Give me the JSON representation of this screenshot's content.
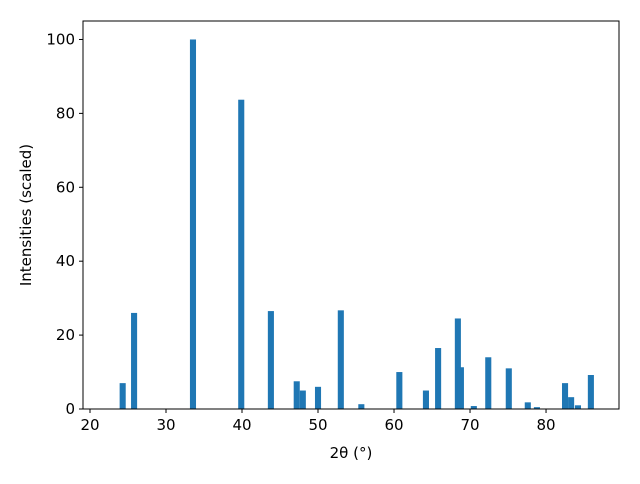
{
  "chart_data": {
    "type": "bar",
    "xlabel": "2θ (°)",
    "ylabel": "Intensities (scaled)",
    "x": [
      24.3,
      25.8,
      33.55,
      39.9,
      43.8,
      47.2,
      48.0,
      50.0,
      53.0,
      55.7,
      60.7,
      64.2,
      65.8,
      68.4,
      68.8,
      70.5,
      72.4,
      75.1,
      77.6,
      78.8,
      82.5,
      83.3,
      84.2,
      85.9
    ],
    "values": [
      7,
      26,
      100,
      83.7,
      26.5,
      7.5,
      5,
      6,
      26.7,
      1.3,
      10,
      5,
      16.5,
      24.5,
      11.3,
      0.8,
      14,
      11,
      1.8,
      0.5,
      7,
      3.2,
      1,
      9.2
    ],
    "color": "#1f77b4",
    "xlim": [
      19.08,
      89.6
    ],
    "xticks": [
      20,
      30,
      40,
      50,
      60,
      70,
      80
    ],
    "ylim": [
      0,
      105
    ],
    "yticks": [
      0,
      20,
      40,
      60,
      80,
      100
    ]
  }
}
